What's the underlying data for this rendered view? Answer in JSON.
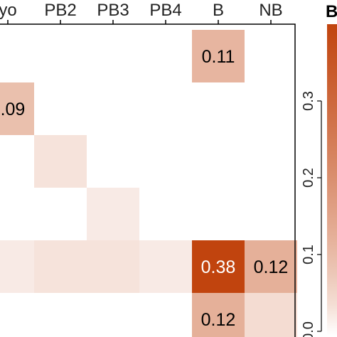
{
  "chart_data": {
    "type": "heatmap",
    "columns": [
      "yo",
      "PB2",
      "PB3",
      "PB4",
      "B",
      "NB"
    ],
    "rows": [
      {
        "cells": [
          null,
          null,
          null,
          null,
          0.11,
          null
        ],
        "labels": [
          "",
          "",
          "",
          "",
          "0.11",
          ""
        ]
      },
      {
        "cells": [
          0.09,
          null,
          null,
          null,
          null,
          null
        ],
        "labels": [
          "0.09",
          "",
          "",
          "",
          "",
          ""
        ]
      },
      {
        "cells": [
          null,
          0.03,
          null,
          null,
          null,
          null
        ],
        "labels": [
          "",
          "",
          "",
          "",
          "",
          ""
        ]
      },
      {
        "cells": [
          null,
          null,
          0.02,
          null,
          null,
          null
        ],
        "labels": [
          "",
          "",
          "",
          "",
          "",
          ""
        ]
      },
      {
        "cells": [
          0.02,
          0.03,
          0.03,
          0.02,
          0.38,
          0.12
        ],
        "labels": [
          "",
          "",
          "",
          "",
          "0.38",
          "0.12"
        ]
      },
      {
        "cells": [
          null,
          null,
          null,
          null,
          0.12,
          0.04
        ],
        "labels": [
          "",
          "",
          "",
          "",
          "0.12",
          ""
        ]
      }
    ],
    "color_scale": {
      "low": "#ffffff",
      "high": "#c1440e",
      "range": [
        0,
        0.38
      ]
    },
    "legend": {
      "title": "B",
      "ticks": [
        0.0,
        0.1,
        0.2,
        0.3
      ],
      "tick_labels": [
        "0.0",
        "0.1",
        "0.2",
        "0.3"
      ]
    }
  }
}
